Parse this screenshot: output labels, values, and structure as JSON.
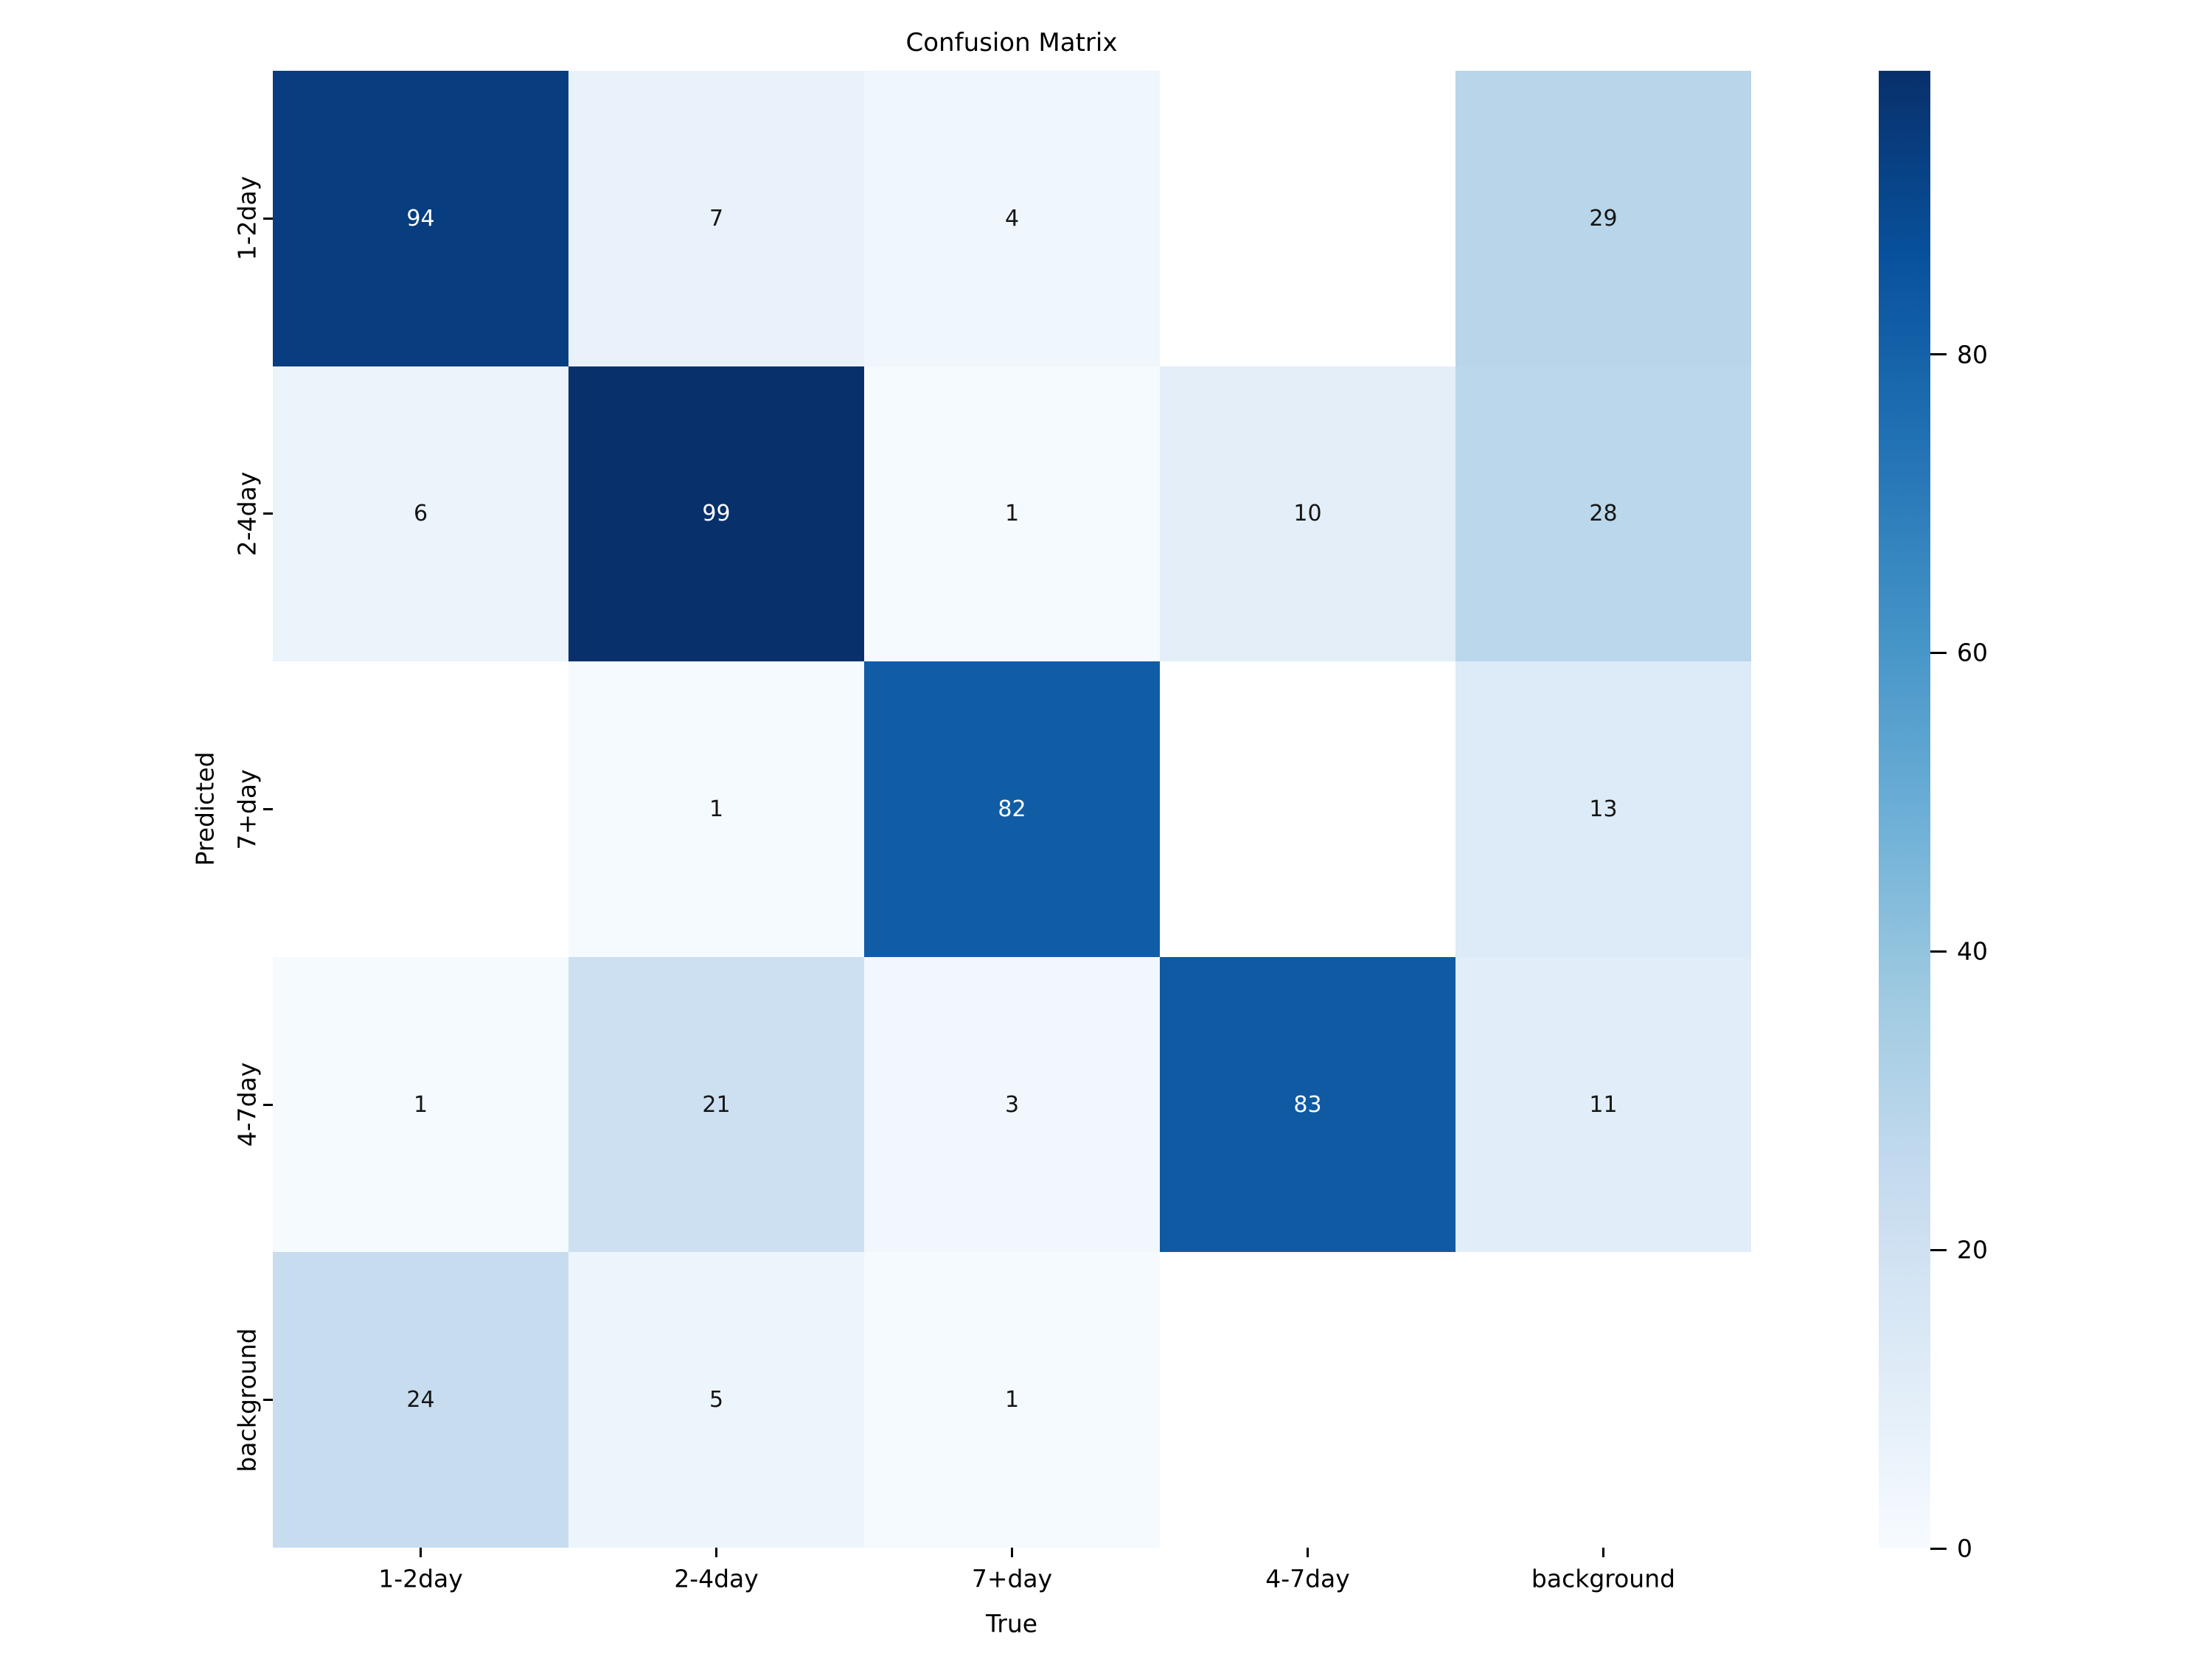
{
  "title": "Confusion Matrix",
  "chart_data": {
    "type": "heatmap",
    "title": "Confusion Matrix",
    "xlabel": "True",
    "ylabel": "Predicted",
    "x_categories": [
      "1-2day",
      "2-4day",
      "7+day",
      "4-7day",
      "background"
    ],
    "y_categories": [
      "1-2day",
      "2-4day",
      "7+day",
      "4-7day",
      "background"
    ],
    "values": [
      [
        94,
        7,
        4,
        null,
        29
      ],
      [
        6,
        99,
        1,
        10,
        28
      ],
      [
        null,
        1,
        82,
        null,
        13
      ],
      [
        1,
        21,
        3,
        83,
        11
      ],
      [
        24,
        5,
        1,
        null,
        null
      ]
    ],
    "vmin": 0,
    "vmax": 99,
    "colormap": "Blues",
    "colormap_stops": [
      "#f7fbff",
      "#deebf7",
      "#c6dbef",
      "#9ecae1",
      "#6baed6",
      "#4292c6",
      "#2171b5",
      "#08519c",
      "#08306b"
    ],
    "colorbar_ticks": [
      80,
      60,
      40,
      20,
      0
    ],
    "null_cell_color": "#ffffff",
    "annotation_color_dark": "#151515",
    "annotation_color_light": "#ffffff",
    "background": "#ffffff",
    "legend_position": "right-colorbar",
    "grid": false
  }
}
